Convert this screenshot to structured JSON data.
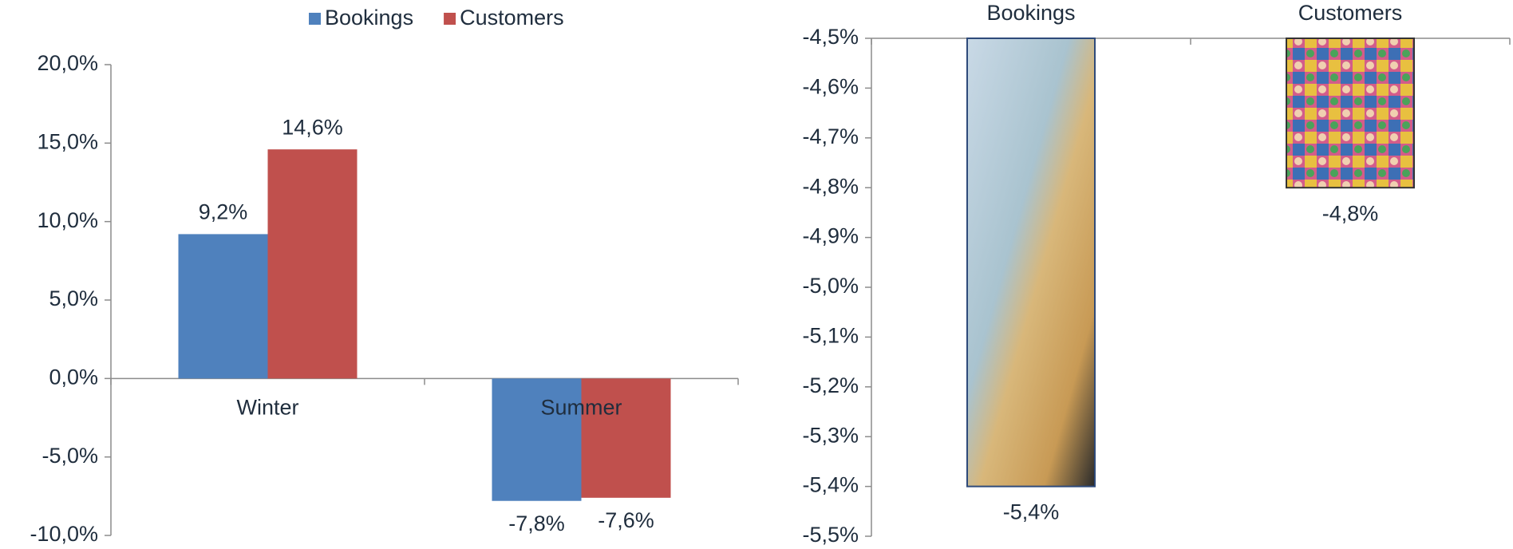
{
  "chart_data": [
    {
      "type": "bar",
      "categories": [
        "Winter",
        "Summer"
      ],
      "series": [
        {
          "name": "Bookings",
          "color": "#4f81bd",
          "values": [
            9.2,
            -7.8
          ],
          "value_labels": [
            "9,2%",
            "-7,8%"
          ]
        },
        {
          "name": "Customers",
          "color": "#c0504d",
          "values": [
            14.6,
            -7.6
          ],
          "value_labels": [
            "14,6%",
            "-7,6%"
          ]
        }
      ],
      "ylim": [
        -10,
        20
      ],
      "yticks": [
        {
          "value": -10,
          "label": "-10,0%"
        },
        {
          "value": -5,
          "label": "-5,0%"
        },
        {
          "value": 0,
          "label": "0,0%"
        },
        {
          "value": 5,
          "label": "5,0%"
        },
        {
          "value": 10,
          "label": "10,0%"
        },
        {
          "value": 15,
          "label": "15,0%"
        },
        {
          "value": 20,
          "label": "20,0%"
        }
      ],
      "legend": "top"
    },
    {
      "type": "bar",
      "categories": [
        "Bookings",
        "Customers"
      ],
      "values": [
        -5.4,
        -4.8
      ],
      "value_labels": [
        "-5,4%",
        "-4,8%"
      ],
      "ylim": [
        -5.5,
        -4.5
      ],
      "yticks": [
        {
          "value": -5.5,
          "label": "-5,5%"
        },
        {
          "value": -5.4,
          "label": "-5,4%"
        },
        {
          "value": -5.3,
          "label": "-5,3%"
        },
        {
          "value": -5.2,
          "label": "-5,2%"
        },
        {
          "value": -5.1,
          "label": "-5,1%"
        },
        {
          "value": -5.0,
          "label": "-5,0%"
        },
        {
          "value": -4.9,
          "label": "-4,9%"
        },
        {
          "value": -4.8,
          "label": "-4,8%"
        },
        {
          "value": -4.7,
          "label": "-4,7%"
        },
        {
          "value": -4.6,
          "label": "-4,6%"
        },
        {
          "value": -4.5,
          "label": "-4,5%"
        }
      ]
    }
  ]
}
